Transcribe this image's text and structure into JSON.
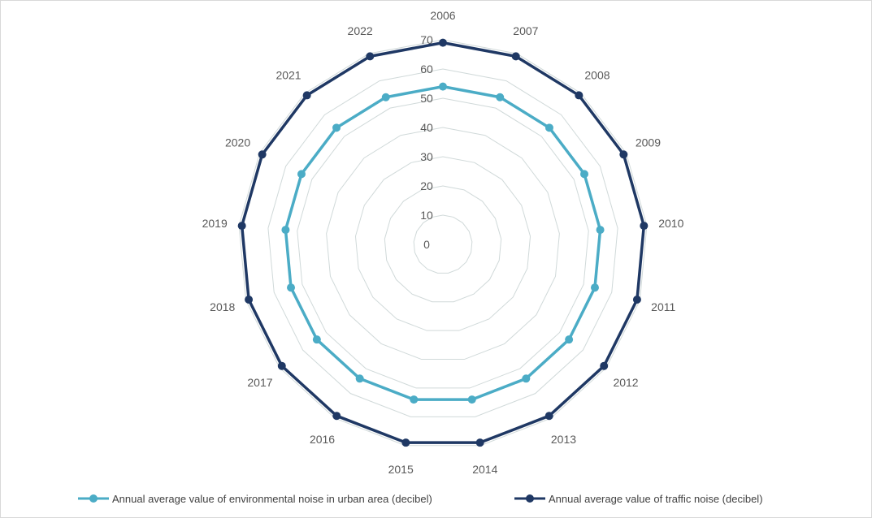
{
  "chart_data": {
    "type": "radar",
    "categories": [
      "2006",
      "2007",
      "2008",
      "2009",
      "2010",
      "2011",
      "2012",
      "2013",
      "2014",
      "2015",
      "2016",
      "2017",
      "2018",
      "2019",
      "2020",
      "2021",
      "2022"
    ],
    "series": [
      {
        "name": "Annual average value of environmental noise in urban area (decibel)",
        "color": "#4bacc6",
        "values": [
          54,
          54,
          54,
          54,
          54,
          54,
          54,
          54,
          54,
          54,
          54,
          54,
          54,
          54,
          54,
          54,
          54
        ]
      },
      {
        "name": "Annual average value of traffic noise (decibel)",
        "color": "#1f3864",
        "values": [
          69,
          69,
          69,
          69,
          69,
          69,
          69,
          69,
          69,
          69,
          69,
          69,
          69,
          69,
          69,
          69,
          69
        ]
      }
    ],
    "r_ticks": [
      "0",
      "10",
      "20",
      "30",
      "40",
      "50",
      "60",
      "70"
    ],
    "rlim": [
      0,
      70
    ],
    "grid": true,
    "legend_position": "bottom"
  }
}
